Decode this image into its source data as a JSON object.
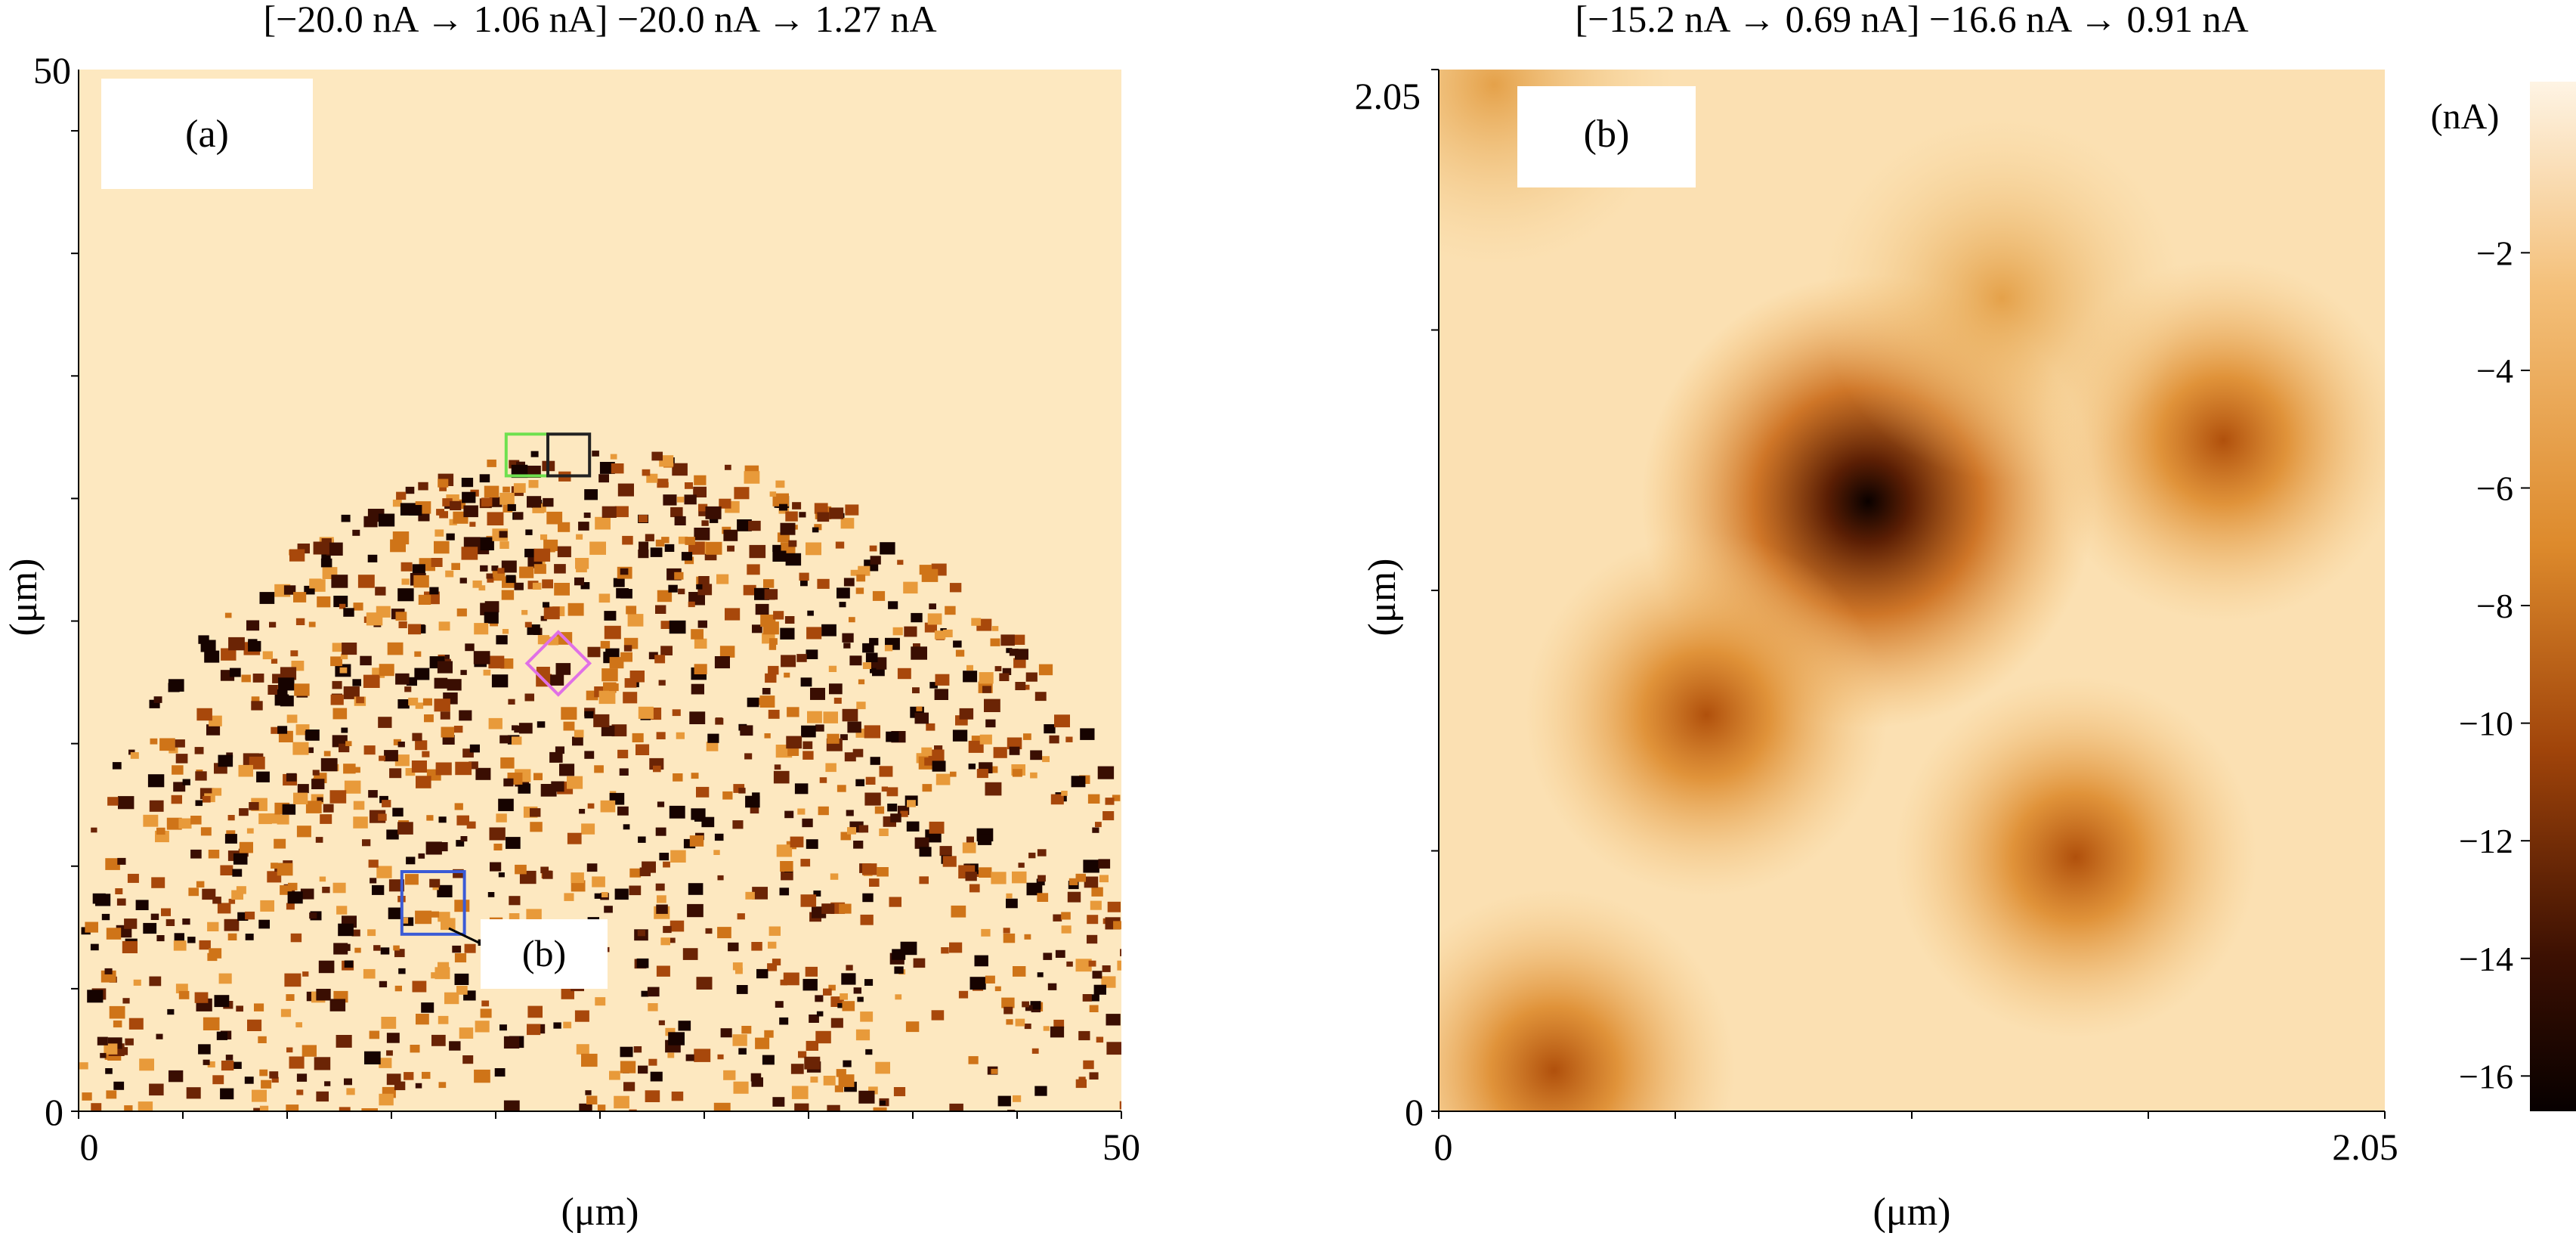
{
  "chart_data": [
    {
      "type": "heatmap",
      "panel_label": "(a)",
      "title": "[−20.0 nA → 1.06 nA] −20.0 nA → 1.27 nA",
      "xlabel": "(μm)",
      "ylabel": "(μm)",
      "xlim": [
        0,
        50
      ],
      "ylim": [
        0,
        50
      ],
      "x_tick_labels": [
        "0",
        "50"
      ],
      "y_tick_labels": [
        "0",
        "50"
      ],
      "inset_label": "(b)",
      "description_of_field": "Circular-cap region of dense dark spots below y≈32 μm, uniform light background above",
      "colors": {
        "background": "#fde8c0",
        "low": "#120200",
        "mid": "#c8620f",
        "high": "#fef4e4"
      },
      "markers": [
        {
          "shape": "square",
          "color": "#3b5bd6",
          "center": [
            17,
            10
          ],
          "size": 3
        },
        {
          "shape": "square",
          "color": "#6fe04f",
          "center": [
            21.5,
            31.5
          ],
          "size": 2
        },
        {
          "shape": "square",
          "color": "#222222",
          "center": [
            23.5,
            31.5
          ],
          "size": 2
        },
        {
          "shape": "diamond",
          "color": "#e070e6",
          "center": [
            23,
            21.5
          ],
          "size": 3
        }
      ]
    },
    {
      "type": "heatmap",
      "panel_label": "(b)",
      "title": "[−15.2 nA → 0.69 nA] −16.6 nA → 0.91 nA",
      "xlabel": "(μm)",
      "ylabel": "(μm)",
      "xlim": [
        0,
        2.05
      ],
      "ylim": [
        0,
        2.05
      ],
      "x_tick_labels": [
        "0",
        "2.05"
      ],
      "y_tick_labels": [
        "0",
        "2.05"
      ],
      "blobs": [
        {
          "x": 0.93,
          "y": 1.2,
          "value_nA": -16.2
        },
        {
          "x": 0.58,
          "y": 0.78,
          "value_nA": -8.5
        },
        {
          "x": 1.7,
          "y": 1.32,
          "value_nA": -6.5
        },
        {
          "x": 1.38,
          "y": 0.5,
          "value_nA": -6.0
        },
        {
          "x": 1.22,
          "y": 1.6,
          "value_nA": -3.0
        },
        {
          "x": 0.25,
          "y": 0.08,
          "value_nA": -6.0
        },
        {
          "x": 0.12,
          "y": 2.02,
          "value_nA": -5.0
        }
      ],
      "colorbar": {
        "unit_label": "(nA)",
        "range": [
          -16.6,
          0.91
        ],
        "ticks": [
          -2,
          -4,
          -6,
          -8,
          -10,
          -12,
          -14,
          -16
        ],
        "tick_labels": [
          "−2",
          "−4",
          "−6",
          "−8",
          "−10",
          "−12",
          "−14",
          "−16"
        ]
      }
    }
  ]
}
